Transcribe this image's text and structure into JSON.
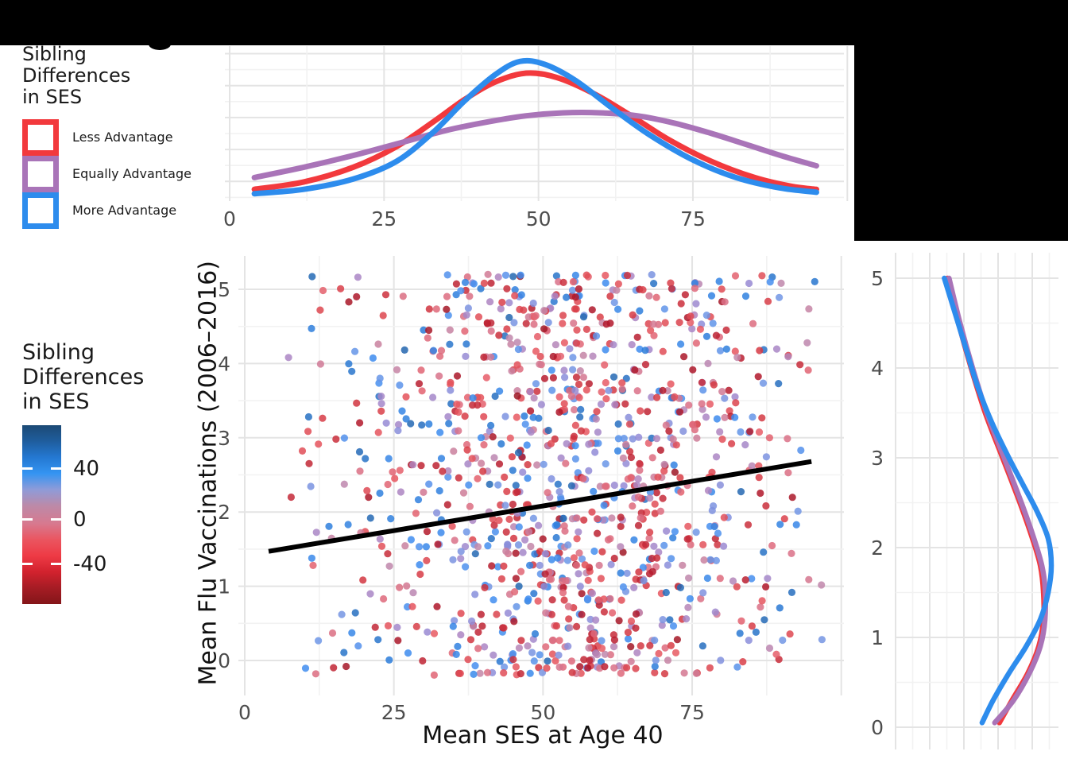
{
  "redactions": [
    {
      "name": "top-redaction-bar"
    },
    {
      "name": "top-right-redaction-block"
    },
    {
      "name": "title-letter-descender"
    }
  ],
  "colors": {
    "red": "#F2393D",
    "purple": "#A974B8",
    "blue": "#2D8CED",
    "regression_line": "#000000",
    "grid_major": "#E4E4E4",
    "grid_minor": "#F2F2F2",
    "tick_text": "#4D4D4D",
    "title_text": "#1A1A1A",
    "gradient_stops_top_to_bottom": [
      "#1C4A75",
      "#1F5D9E",
      "#2478D2",
      "#3494F2",
      "#8F9BD8",
      "#BC8AA8",
      "#D7798F",
      "#EA5560",
      "#EE3A45",
      "#D2222E",
      "#A51C24",
      "#841519"
    ]
  },
  "legend_discrete": {
    "title_lines": [
      "Sibling",
      "Differences",
      "in SES"
    ],
    "items": [
      {
        "label": "Less Advantage",
        "color": "#F2393D"
      },
      {
        "label": "Equally Advantage",
        "color": "#A974B8"
      },
      {
        "label": "More Advantage",
        "color": "#2D8CED"
      }
    ]
  },
  "legend_gradient": {
    "title_lines": [
      "Sibling",
      "Differences",
      "in SES"
    ],
    "tick_labels": [
      "40",
      "0",
      "-40"
    ],
    "domain": [
      -57,
      57
    ]
  },
  "axes": {
    "x_title": "Mean SES at Age 40",
    "y_title": "Mean Flu Vaccinations (2006–2016)",
    "x_tick_labels": [
      "0",
      "25",
      "50",
      "75"
    ],
    "y_tick_labels": [
      "0",
      "1",
      "2",
      "3",
      "4",
      "5"
    ]
  },
  "chart_data": [
    {
      "type": "line",
      "panel": "top-marginal-density",
      "x_ticks": [
        0,
        25,
        50,
        75
      ],
      "x_range": [
        -1,
        100
      ],
      "grid": true,
      "series": [
        {
          "name": "Less Advantage",
          "color_key": "red",
          "points": [
            [
              4,
              0.08
            ],
            [
              12,
              0.13
            ],
            [
              20,
              0.23
            ],
            [
              27,
              0.37
            ],
            [
              33,
              0.54
            ],
            [
              38,
              0.69
            ],
            [
              43,
              0.81
            ],
            [
              48,
              0.87
            ],
            [
              53,
              0.84
            ],
            [
              59,
              0.73
            ],
            [
              65,
              0.58
            ],
            [
              71,
              0.42
            ],
            [
              78,
              0.27
            ],
            [
              85,
              0.16
            ],
            [
              91,
              0.1
            ],
            [
              95,
              0.08
            ]
          ]
        },
        {
          "name": "Equally Advantage",
          "color_key": "purple",
          "points": [
            [
              4,
              0.16
            ],
            [
              12,
              0.23
            ],
            [
              20,
              0.31
            ],
            [
              28,
              0.4
            ],
            [
              35,
              0.48
            ],
            [
              42,
              0.54
            ],
            [
              48,
              0.58
            ],
            [
              54,
              0.6
            ],
            [
              60,
              0.6
            ],
            [
              66,
              0.58
            ],
            [
              72,
              0.53
            ],
            [
              78,
              0.46
            ],
            [
              84,
              0.38
            ],
            [
              90,
              0.3
            ],
            [
              95,
              0.24
            ]
          ]
        },
        {
          "name": "More Advantage",
          "color_key": "blue",
          "points": [
            [
              4,
              0.05
            ],
            [
              12,
              0.08
            ],
            [
              20,
              0.15
            ],
            [
              27,
              0.27
            ],
            [
              33,
              0.47
            ],
            [
              38,
              0.68
            ],
            [
              43,
              0.86
            ],
            [
              47,
              0.95
            ],
            [
              51,
              0.93
            ],
            [
              56,
              0.82
            ],
            [
              62,
              0.63
            ],
            [
              68,
              0.45
            ],
            [
              75,
              0.28
            ],
            [
              82,
              0.16
            ],
            [
              89,
              0.09
            ],
            [
              95,
              0.06
            ]
          ]
        }
      ]
    },
    {
      "type": "scatter",
      "panel": "main",
      "xlabel": "Mean SES at Age 40",
      "ylabel": "Mean Flu Vaccinations (2006–2016)",
      "x_ticks": [
        0,
        25,
        50,
        75
      ],
      "y_ticks": [
        0,
        1,
        2,
        3,
        4,
        5
      ],
      "x_range": [
        -1,
        100
      ],
      "y_range": [
        -0.45,
        5.45
      ],
      "grid": true,
      "n_points": 1150,
      "seed": 42,
      "point_radius": 4.6,
      "point_opacity": 0.85,
      "y_band_step": 0.0909,
      "color_scale": {
        "ticks": [
          40,
          0,
          -40
        ],
        "domain": [
          -57,
          57
        ],
        "stops": [
          [
            -57,
            "#7F151D"
          ],
          [
            -40,
            "#B2182B"
          ],
          [
            -25,
            "#D63A44"
          ],
          [
            -12,
            "#E85A63"
          ],
          [
            -5,
            "#D97289"
          ],
          [
            0,
            "#C287A9"
          ],
          [
            5,
            "#AE85C2"
          ],
          [
            12,
            "#948BD6"
          ],
          [
            22,
            "#6F97E6"
          ],
          [
            32,
            "#3F8DF0"
          ],
          [
            40,
            "#2B7CD9"
          ],
          [
            57,
            "#1C4C7C"
          ]
        ]
      },
      "regression_line": {
        "x": [
          4,
          95
        ],
        "y": [
          1.47,
          2.68
        ],
        "color": "#000000",
        "width": 6
      }
    },
    {
      "type": "line",
      "panel": "right-marginal-density",
      "y_ticks": [
        0,
        1,
        2,
        3,
        4,
        5
      ],
      "y_range": [
        -0.25,
        5.3
      ],
      "grid": true,
      "series": [
        {
          "name": "Less Advantage",
          "color_key": "red",
          "points": [
            [
              5,
              0.33
            ],
            [
              4.5,
              0.4
            ],
            [
              4,
              0.48
            ],
            [
              3.5,
              0.57
            ],
            [
              3,
              0.68
            ],
            [
              2.5,
              0.79
            ],
            [
              2.1,
              0.87
            ],
            [
              1.8,
              0.92
            ],
            [
              1.5,
              0.94
            ],
            [
              1.2,
              0.94
            ],
            [
              0.9,
              0.91
            ],
            [
              0.6,
              0.84
            ],
            [
              0.3,
              0.74
            ],
            [
              0.05,
              0.66
            ]
          ]
        },
        {
          "name": "Equally Advantage",
          "color_key": "purple",
          "points": [
            [
              5,
              0.34
            ],
            [
              4.5,
              0.41
            ],
            [
              4,
              0.49
            ],
            [
              3.5,
              0.58
            ],
            [
              3,
              0.69
            ],
            [
              2.5,
              0.8
            ],
            [
              2.1,
              0.88
            ],
            [
              1.8,
              0.93
            ],
            [
              1.55,
              0.95
            ],
            [
              1.2,
              0.95
            ],
            [
              0.9,
              0.92
            ],
            [
              0.6,
              0.85
            ],
            [
              0.3,
              0.75
            ],
            [
              0.05,
              0.63
            ]
          ]
        },
        {
          "name": "More Advantage",
          "color_key": "blue",
          "points": [
            [
              5,
              0.31
            ],
            [
              4.6,
              0.38
            ],
            [
              4.2,
              0.45
            ],
            [
              3.8,
              0.52
            ],
            [
              3.4,
              0.61
            ],
            [
              3.0,
              0.72
            ],
            [
              2.7,
              0.81
            ],
            [
              2.4,
              0.9
            ],
            [
              2.1,
              0.97
            ],
            [
              1.8,
              0.99
            ],
            [
              1.5,
              0.97
            ],
            [
              1.2,
              0.92
            ],
            [
              0.9,
              0.83
            ],
            [
              0.6,
              0.72
            ],
            [
              0.3,
              0.62
            ],
            [
              0.05,
              0.55
            ]
          ]
        }
      ]
    }
  ]
}
